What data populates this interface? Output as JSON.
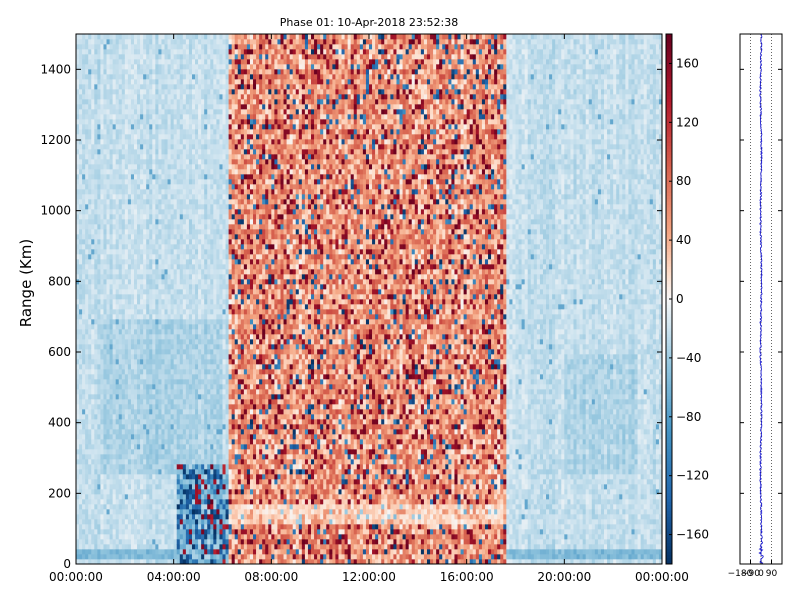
{
  "chart_data": [
    {
      "type": "heatmap",
      "title": "Phase 01: 10-Apr-2018 23:52:38",
      "xlabel": "",
      "ylabel": "Range (Km)",
      "x_ticks": [
        "00:00:00",
        "04:00:00",
        "08:00:00",
        "12:00:00",
        "16:00:00",
        "20:00:00",
        "00:00:00"
      ],
      "xlim_hours": [
        0,
        24
      ],
      "y_ticks": [
        "0",
        "200",
        "400",
        "600",
        "800",
        "1000",
        "1200",
        "1400"
      ],
      "ylim": [
        0,
        1500
      ],
      "colorbar": {
        "ticks": [
          "160",
          "120",
          "80",
          "40",
          "0",
          "−40",
          "−80",
          "−120",
          "−160"
        ],
        "range": [
          -180,
          180
        ],
        "colormap": "RdBu_r"
      },
      "features": {
        "high_variance_band_hours": [
          6.3,
          17.6
        ],
        "dense_variance_block_hours": [
          4.1,
          6.6
        ],
        "dense_variance_block_range": [
          0,
          290
        ]
      }
    },
    {
      "type": "line",
      "title": "",
      "xlabel": "",
      "ylabel": "",
      "x_ticks": [
        "−180",
        "−90",
        "0",
        "90"
      ],
      "xlim": [
        -180,
        180
      ],
      "ylim": [
        0,
        1500
      ],
      "grid": "x-dotted",
      "series_mean_value": 0,
      "series_color": "#0000cc"
    }
  ]
}
